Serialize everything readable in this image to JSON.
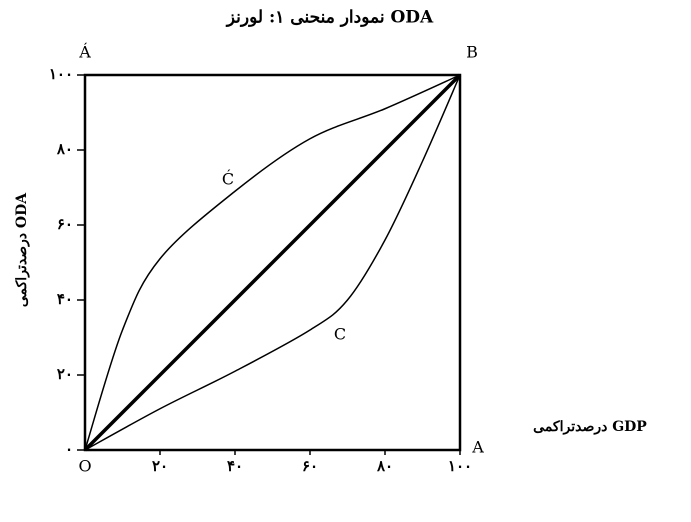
{
  "chart_data": {
    "type": "line",
    "title": "نمودار منحنی ۱: لورنز ODA",
    "x_label": "درصدتراکمی GDP",
    "y_label": "درصدتراکمی ODA",
    "annotations": [
      "Á",
      "B",
      "A",
      "O",
      "Ć",
      "C"
    ],
    "xlim": [
      0,
      100
    ],
    "ylim": [
      0,
      100
    ],
    "xticks": [
      {
        "value": 20,
        "label": "۲۰"
      },
      {
        "value": 40,
        "label": "۴۰"
      },
      {
        "value": 60,
        "label": "۶۰"
      },
      {
        "value": 80,
        "label": "۸۰"
      },
      {
        "value": 100,
        "label": "۱۰۰"
      }
    ],
    "yticks": [
      {
        "value": 0,
        "label": "۰"
      },
      {
        "value": 20,
        "label": "۲۰"
      },
      {
        "value": 40,
        "label": "۴۰"
      },
      {
        "value": 60,
        "label": "۶۰"
      },
      {
        "value": 80,
        "label": "۸۰"
      },
      {
        "value": 100,
        "label": "۱۰۰"
      }
    ],
    "series": [
      {
        "color": "#000000",
        "x": [
          0,
          100
        ],
        "values": [
          0,
          100
        ]
      },
      {
        "color": "#000000",
        "x": [
          0,
          10,
          20,
          40,
          60,
          80,
          100
        ],
        "values": [
          0,
          32,
          51,
          69,
          83,
          91,
          100
        ]
      },
      {
        "color": "#000000",
        "x": [
          0,
          20,
          40,
          60,
          70,
          80,
          90,
          100
        ],
        "values": [
          0,
          11,
          21,
          32,
          40,
          56,
          77,
          100
        ]
      }
    ]
  }
}
